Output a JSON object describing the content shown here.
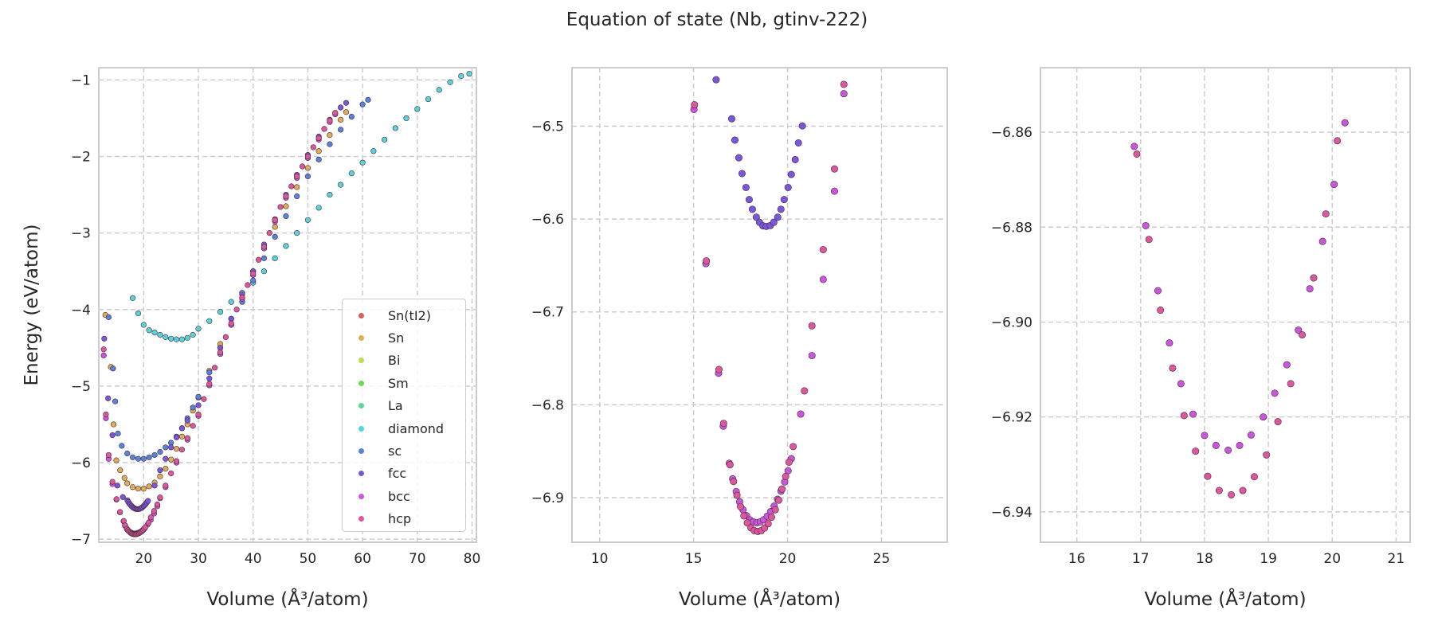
{
  "chart_data": {
    "type": "scatter",
    "title": "Equation of state (Nb, gtinv-222)",
    "xlabel": "Volume (Å³/atom)",
    "ylabel": "Energy (eV/atom)",
    "legend_placement": "lower-right (first panel)",
    "grid": true,
    "panels": [
      {
        "xlim": [
          11.8,
          80.8
        ],
        "ylim": [
          -7.04,
          -0.84
        ],
        "xticks": [
          20,
          30,
          40,
          50,
          60,
          70,
          80
        ],
        "yticks": [
          -7,
          -6,
          -5,
          -4,
          -3,
          -2,
          -1
        ],
        "ytick_labels": [
          "−7",
          "−6",
          "−5",
          "−4",
          "−3",
          "−2",
          "−1"
        ],
        "xtick_labels": [
          "20",
          "30",
          "40",
          "50",
          "60",
          "70",
          "80"
        ],
        "show_legend": true,
        "show_ylabel": true
      },
      {
        "xlim": [
          8.53,
          28.5
        ],
        "ylim": [
          -6.948,
          -6.437
        ],
        "xticks": [
          10,
          15,
          20,
          25
        ],
        "xtick_labels": [
          "10",
          "15",
          "20",
          "25"
        ],
        "yticks": [
          -6.9,
          -6.8,
          -6.7,
          -6.6,
          -6.5
        ],
        "ytick_labels": [
          "−6.9",
          "−6.8",
          "−6.7",
          "−6.6",
          "−6.5"
        ]
      },
      {
        "xlim": [
          15.43,
          21.22
        ],
        "ylim": [
          -6.9464,
          -6.8464
        ],
        "xticks": [
          16,
          17,
          18,
          19,
          20,
          21
        ],
        "xtick_labels": [
          "16",
          "17",
          "18",
          "19",
          "20",
          "21"
        ],
        "yticks": [
          -6.94,
          -6.92,
          -6.9,
          -6.88,
          -6.86
        ],
        "ytick_labels": [
          "−6.94",
          "−6.92",
          "−6.90",
          "−6.88",
          "−6.86"
        ]
      }
    ],
    "series": [
      {
        "name": "Sn(tI2)",
        "color": "#db5f57",
        "points": []
      },
      {
        "name": "Sn",
        "color": "#dbae57",
        "points": [
          [
            13,
            -4.07
          ],
          [
            14,
            -4.75
          ],
          [
            14.5,
            -5.5
          ],
          [
            15,
            -5.97
          ],
          [
            15.7,
            -6.1
          ],
          [
            16.5,
            -6.2
          ],
          [
            17,
            -6.27
          ],
          [
            18,
            -6.32
          ],
          [
            19,
            -6.34
          ],
          [
            20,
            -6.34
          ],
          [
            21,
            -6.31
          ],
          [
            22,
            -6.26
          ],
          [
            23,
            -6.18
          ],
          [
            24,
            -6.08
          ],
          [
            25,
            -5.96
          ],
          [
            26,
            -5.82
          ],
          [
            27,
            -5.66
          ],
          [
            28,
            -5.5
          ],
          [
            29,
            -5.32
          ],
          [
            30,
            -5.15
          ],
          [
            32,
            -4.8
          ],
          [
            34,
            -4.45
          ],
          [
            36,
            -4.12
          ],
          [
            38,
            -3.8
          ],
          [
            40,
            -3.5
          ],
          [
            42,
            -3.2
          ],
          [
            44,
            -2.92
          ],
          [
            46,
            -2.65
          ],
          [
            48,
            -2.4
          ],
          [
            50,
            -2.15
          ],
          [
            52,
            -1.93
          ],
          [
            54,
            -1.72
          ],
          [
            56,
            -1.52
          ],
          [
            57,
            -1.42
          ]
        ]
      },
      {
        "name": "Bi",
        "color": "#b9db57",
        "points": []
      },
      {
        "name": "Sm",
        "color": "#69db57",
        "points": []
      },
      {
        "name": "La",
        "color": "#57db94",
        "points": []
      },
      {
        "name": "diamond",
        "color": "#57d3db",
        "points": [
          [
            18,
            -3.85
          ],
          [
            19,
            -4.05
          ],
          [
            20,
            -4.2
          ],
          [
            21,
            -4.27
          ],
          [
            22,
            -4.3
          ],
          [
            23,
            -4.33
          ],
          [
            24,
            -4.36
          ],
          [
            25,
            -4.38
          ],
          [
            26,
            -4.39
          ],
          [
            27,
            -4.39
          ],
          [
            28,
            -4.37
          ],
          [
            29,
            -4.33
          ],
          [
            30,
            -4.25
          ],
          [
            32,
            -4.15
          ],
          [
            34,
            -4.03
          ],
          [
            36,
            -3.9
          ],
          [
            38,
            -3.78
          ],
          [
            40,
            -3.65
          ],
          [
            42,
            -3.5
          ],
          [
            44,
            -3.33
          ],
          [
            46,
            -3.17
          ],
          [
            48,
            -3.0
          ],
          [
            50,
            -2.83
          ],
          [
            52,
            -2.67
          ],
          [
            54,
            -2.5
          ],
          [
            56,
            -2.37
          ],
          [
            58,
            -2.22
          ],
          [
            60,
            -2.08
          ],
          [
            62,
            -1.93
          ],
          [
            64,
            -1.78
          ],
          [
            66,
            -1.63
          ],
          [
            68,
            -1.5
          ],
          [
            70,
            -1.38
          ],
          [
            72,
            -1.25
          ],
          [
            74,
            -1.13
          ],
          [
            76,
            -1.03
          ],
          [
            78,
            -0.95
          ],
          [
            79.5,
            -0.92
          ]
        ]
      },
      {
        "name": "sc",
        "color": "#5784db",
        "points": [
          [
            13.6,
            -4.1
          ],
          [
            14.4,
            -4.77
          ],
          [
            14.8,
            -5.2
          ],
          [
            15.3,
            -5.62
          ],
          [
            16,
            -5.78
          ],
          [
            17,
            -5.88
          ],
          [
            18,
            -5.93
          ],
          [
            19,
            -5.95
          ],
          [
            20,
            -5.95
          ],
          [
            21,
            -5.93
          ],
          [
            22,
            -5.9
          ],
          [
            23,
            -5.86
          ],
          [
            24,
            -5.8
          ],
          [
            25,
            -5.74
          ],
          [
            26,
            -5.66
          ],
          [
            27,
            -5.55
          ],
          [
            28,
            -5.42
          ],
          [
            29,
            -5.28
          ],
          [
            30,
            -5.14
          ],
          [
            32,
            -4.82
          ],
          [
            34,
            -4.5
          ],
          [
            36,
            -4.2
          ],
          [
            38,
            -3.9
          ],
          [
            40,
            -3.62
          ],
          [
            42,
            -3.33
          ],
          [
            44,
            -3.05
          ],
          [
            46,
            -2.78
          ],
          [
            48,
            -2.52
          ],
          [
            50,
            -2.26
          ],
          [
            52,
            -2.04
          ],
          [
            54,
            -1.84
          ],
          [
            56,
            -1.65
          ],
          [
            58,
            -1.48
          ],
          [
            60,
            -1.32
          ],
          [
            61,
            -1.26
          ]
        ]
      },
      {
        "name": "fcc",
        "color": "#7957db",
        "points": [
          [
            12.8,
            -4.38
          ],
          [
            13.5,
            -5.16
          ],
          [
            14.3,
            -5.64
          ],
          [
            15.2,
            -6.3
          ],
          [
            16.2,
            -6.45
          ],
          [
            17.03,
            -6.492
          ],
          [
            17.2,
            -6.515
          ],
          [
            17.41,
            -6.534
          ],
          [
            17.58,
            -6.551
          ],
          [
            17.79,
            -6.566
          ],
          [
            17.96,
            -6.579
          ],
          [
            18.13,
            -6.5895
          ],
          [
            18.34,
            -6.598
          ],
          [
            18.51,
            -6.6035
          ],
          [
            18.69,
            -6.6073
          ],
          [
            18.87,
            -6.6079
          ],
          [
            19.08,
            -6.607
          ],
          [
            19.27,
            -6.6035
          ],
          [
            19.48,
            -6.598
          ],
          [
            19.65,
            -6.5895
          ],
          [
            19.82,
            -6.579
          ],
          [
            20.03,
            -6.566
          ],
          [
            20.2,
            -6.552
          ],
          [
            20.41,
            -6.536
          ],
          [
            20.58,
            -6.518
          ],
          [
            20.79,
            -6.4997
          ],
          [
            22,
            -6.3
          ],
          [
            23,
            -6.1
          ],
          [
            24,
            -5.95
          ],
          [
            25,
            -5.8
          ],
          [
            26,
            -5.67
          ],
          [
            27,
            -5.55
          ],
          [
            28,
            -5.45
          ],
          [
            30,
            -5.25
          ],
          [
            32,
            -4.9
          ],
          [
            34,
            -4.5
          ],
          [
            36,
            -4.12
          ],
          [
            38,
            -3.8
          ],
          [
            40,
            -3.5
          ],
          [
            42,
            -3.15
          ],
          [
            44,
            -2.82
          ],
          [
            46,
            -2.5
          ],
          [
            48,
            -2.24
          ],
          [
            50,
            -1.98
          ],
          [
            52,
            -1.74
          ],
          [
            54,
            -1.52
          ],
          [
            56,
            -1.36
          ],
          [
            57,
            -1.3
          ]
        ]
      },
      {
        "name": "bcc",
        "color": "#c957db",
        "points": [
          [
            12.7,
            -4.6
          ],
          [
            13.1,
            -5.42
          ],
          [
            13.6,
            -5.95
          ],
          [
            14.3,
            -6.28
          ],
          [
            15.02,
            -6.482
          ],
          [
            15.66,
            -6.648
          ],
          [
            16.33,
            -6.766
          ],
          [
            16.58,
            -6.823
          ],
          [
            16.9,
            -6.863
          ],
          [
            17.08,
            -6.8797
          ],
          [
            17.27,
            -6.8934
          ],
          [
            17.45,
            -6.9044
          ],
          [
            17.63,
            -6.913
          ],
          [
            17.82,
            -6.9194
          ],
          [
            18.0,
            -6.9239
          ],
          [
            18.18,
            -6.926
          ],
          [
            18.37,
            -6.927
          ],
          [
            18.55,
            -6.926
          ],
          [
            18.73,
            -6.9238
          ],
          [
            18.92,
            -6.92
          ],
          [
            19.1,
            -6.915
          ],
          [
            19.29,
            -6.909
          ],
          [
            19.47,
            -6.9017
          ],
          [
            19.65,
            -6.893
          ],
          [
            19.85,
            -6.883
          ],
          [
            20.03,
            -6.871
          ],
          [
            20.2,
            -6.858
          ],
          [
            20.7,
            -6.81
          ],
          [
            21.3,
            -6.747
          ],
          [
            21.9,
            -6.665
          ],
          [
            22.5,
            -6.57
          ],
          [
            23,
            -6.465
          ],
          [
            24,
            -6.32
          ],
          [
            26,
            -6.0
          ],
          [
            28,
            -5.7
          ],
          [
            30,
            -5.39
          ],
          [
            32,
            -4.99
          ],
          [
            34,
            -4.58
          ],
          [
            36,
            -4.2
          ],
          [
            38,
            -3.86
          ],
          [
            40,
            -3.55
          ],
          [
            42,
            -3.2
          ],
          [
            44,
            -2.85
          ],
          [
            46,
            -2.54
          ],
          [
            48,
            -2.28
          ],
          [
            50,
            -2.02
          ],
          [
            52,
            -1.78
          ],
          [
            54,
            -1.55
          ],
          [
            55,
            -1.45
          ]
        ]
      },
      {
        "name": "hcp",
        "color": "#db579e",
        "points": [
          [
            12.7,
            -4.52
          ],
          [
            13.1,
            -5.37
          ],
          [
            13.6,
            -5.9
          ],
          [
            14.3,
            -6.25
          ],
          [
            15.05,
            -6.477
          ],
          [
            15.68,
            -6.645
          ],
          [
            16.35,
            -6.762
          ],
          [
            16.6,
            -6.82
          ],
          [
            16.94,
            -6.8646
          ],
          [
            17.13,
            -6.8826
          ],
          [
            17.31,
            -6.8975
          ],
          [
            17.5,
            -6.9097
          ],
          [
            17.68,
            -6.9197
          ],
          [
            17.86,
            -6.9272
          ],
          [
            18.05,
            -6.9325
          ],
          [
            18.23,
            -6.9355
          ],
          [
            18.42,
            -6.9364
          ],
          [
            18.6,
            -6.9355
          ],
          [
            18.78,
            -6.9326
          ],
          [
            18.97,
            -6.928
          ],
          [
            19.15,
            -6.921
          ],
          [
            19.35,
            -6.913
          ],
          [
            19.53,
            -6.9027
          ],
          [
            19.71,
            -6.8907
          ],
          [
            19.9,
            -6.8772
          ],
          [
            20.08,
            -6.8618
          ],
          [
            20.3,
            -6.845
          ],
          [
            20.9,
            -6.785
          ],
          [
            21.3,
            -6.715
          ],
          [
            21.9,
            -6.633
          ],
          [
            22.5,
            -6.546
          ],
          [
            23,
            -6.455
          ],
          [
            24,
            -6.3
          ],
          [
            25,
            -6.14
          ],
          [
            26,
            -5.98
          ],
          [
            27,
            -5.83
          ],
          [
            28,
            -5.68
          ],
          [
            29,
            -5.52
          ],
          [
            30,
            -5.37
          ],
          [
            31,
            -5.17
          ],
          [
            32,
            -4.97
          ],
          [
            33,
            -4.76
          ],
          [
            34,
            -4.56
          ],
          [
            35,
            -4.36
          ],
          [
            36,
            -4.18
          ],
          [
            37,
            -4.0
          ],
          [
            38,
            -3.84
          ],
          [
            39,
            -3.68
          ],
          [
            40,
            -3.53
          ],
          [
            41,
            -3.35
          ],
          [
            42,
            -3.18
          ],
          [
            43,
            -3.0
          ],
          [
            44,
            -2.83
          ],
          [
            45,
            -2.66
          ],
          [
            46,
            -2.52
          ],
          [
            47,
            -2.39
          ],
          [
            48,
            -2.26
          ],
          [
            49,
            -2.13
          ],
          [
            50,
            -2.0
          ],
          [
            51,
            -1.88
          ],
          [
            52,
            -1.76
          ],
          [
            53,
            -1.64
          ],
          [
            54,
            -1.53
          ],
          [
            55,
            -1.43
          ]
        ]
      }
    ]
  }
}
